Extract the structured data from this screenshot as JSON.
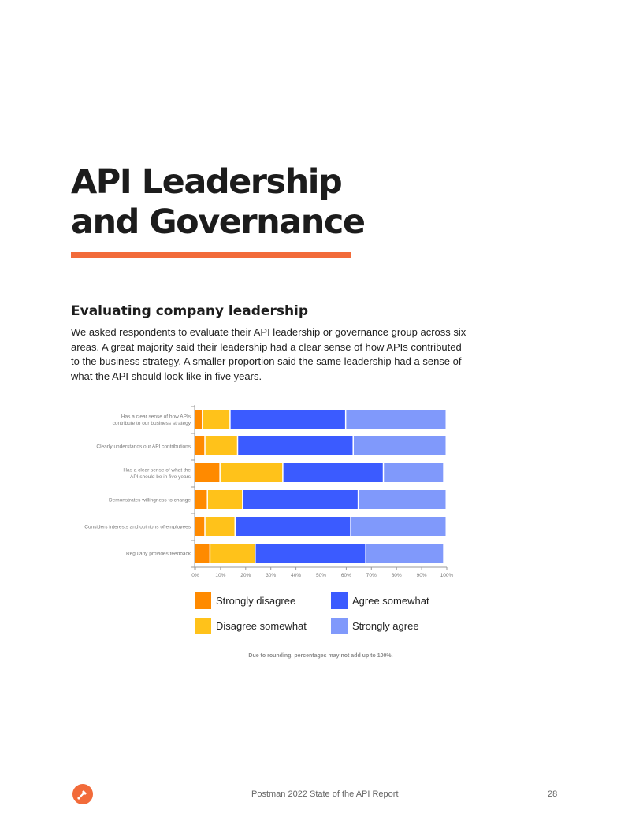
{
  "page": {
    "title_line1": "API Leadership",
    "title_line2": "and Governance",
    "section_heading": "Evaluating company leadership",
    "paragraph": "We asked respondents to evaluate their API leadership or governance group across six areas. A great majority said their leadership had a clear sense of how APIs contributed to the business strategy. A smaller proportion said the same leadership had a sense of what the API should look like in five years.",
    "note": "Due to rounding, percentages may not add up to 100%.",
    "footer_text": "Postman 2022 State of the API Report",
    "page_number": "28",
    "accent_color": "#f26b3a",
    "footer_icon": "postman-logo-icon"
  },
  "chart_data": {
    "type": "bar",
    "orientation": "horizontal",
    "stacked": true,
    "categories": [
      [
        "Has a clear sense of how APIs",
        "contribute to our business strategy"
      ],
      [
        "Clearly understands our API contributions"
      ],
      [
        "Has a clear sense of what the",
        "API should be in five years"
      ],
      [
        "Demonstrates willingness to change"
      ],
      [
        "Considers interests and opinions of employees"
      ],
      [
        "Regularly provides feedback"
      ]
    ],
    "series": [
      {
        "name": "Strongly disagree",
        "color": "#ff8a00",
        "values": [
          3,
          4,
          10,
          5,
          4,
          6
        ]
      },
      {
        "name": "Disagree somewhat",
        "color": "#ffc21a",
        "values": [
          11,
          13,
          25,
          14,
          12,
          18
        ]
      },
      {
        "name": "Agree somewhat",
        "color": "#3b5bff",
        "values": [
          46,
          46,
          40,
          46,
          46,
          44
        ]
      },
      {
        "name": "Strongly agree",
        "color": "#8099fb",
        "values": [
          40,
          37,
          24,
          35,
          38,
          31
        ]
      }
    ],
    "x_ticks": [
      "0%",
      "10%",
      "20%",
      "30%",
      "40%",
      "50%",
      "60%",
      "70%",
      "80%",
      "90%",
      "100%"
    ],
    "xlim": [
      0,
      100
    ],
    "grid": false,
    "legend_placement": "bottom"
  }
}
